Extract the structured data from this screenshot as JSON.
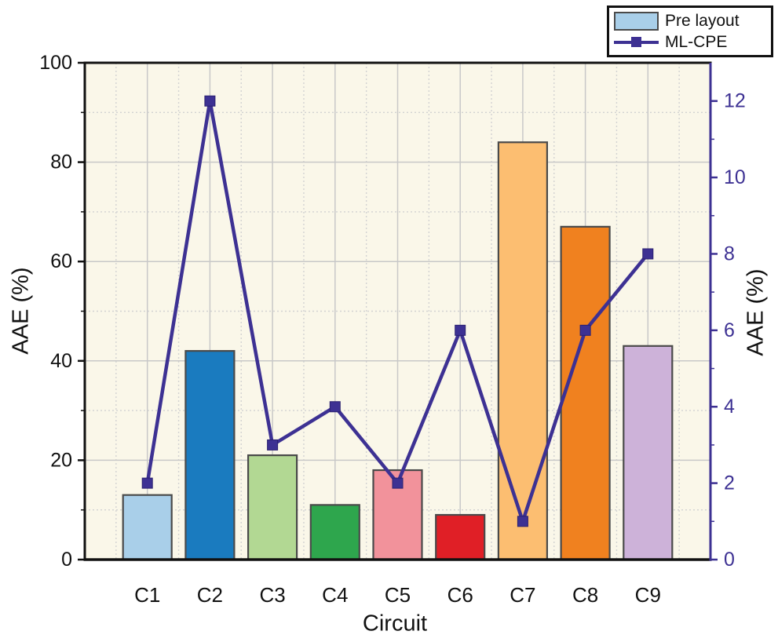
{
  "legend": {
    "items": [
      {
        "label": "Pre layout",
        "type": "bar-swatch",
        "color": "#A9CFE9"
      },
      {
        "label": "ML-CPE",
        "type": "line-swatch",
        "color": "#3D3193"
      }
    ]
  },
  "chart_data": {
    "type": "bar+line combo, dual y-axis",
    "categories": [
      "C1",
      "C2",
      "C3",
      "C4",
      "C5",
      "C6",
      "C7",
      "C8",
      "C9"
    ],
    "series": [
      {
        "name": "Pre layout",
        "type": "bar",
        "axis": "left",
        "values": [
          13,
          42,
          21,
          11,
          18,
          9,
          84,
          67,
          43
        ],
        "bar_colors": [
          "#A9CFE9",
          "#1A7BBF",
          "#B2D893",
          "#2EA64D",
          "#F2929B",
          "#E01F26",
          "#FCBE71",
          "#F0811F",
          "#CDB2D9"
        ],
        "bar_edge_color": "#4A4A4A"
      },
      {
        "name": "ML-CPE",
        "type": "line",
        "axis": "right",
        "values": [
          2,
          12,
          3,
          4,
          2,
          6,
          1,
          6,
          8
        ],
        "color": "#3D3193",
        "marker": "filled-square"
      }
    ],
    "title": "",
    "xlabel": "Circuit",
    "ylabel_left": "AAE (%)",
    "ylabel_right": "AAE (%)",
    "left_axis": {
      "min": 0,
      "max": 100,
      "ticks": [
        0,
        20,
        40,
        60,
        80,
        100
      ],
      "minor_step": 10,
      "color": "#111111"
    },
    "right_axis": {
      "min": 0,
      "max": 13,
      "ticks": [
        0,
        2,
        4,
        6,
        8,
        10,
        12
      ],
      "minor_step": 1,
      "color": "#3D3193"
    },
    "grid": {
      "major_solid": true,
      "minor_dashed": true,
      "vertical_at_categories": true
    },
    "legend_position": "top-right",
    "plot_background": "#FAF7E9",
    "grid_major_color": "#C8C8C8",
    "grid_minor_color": "#D2D2D2"
  }
}
